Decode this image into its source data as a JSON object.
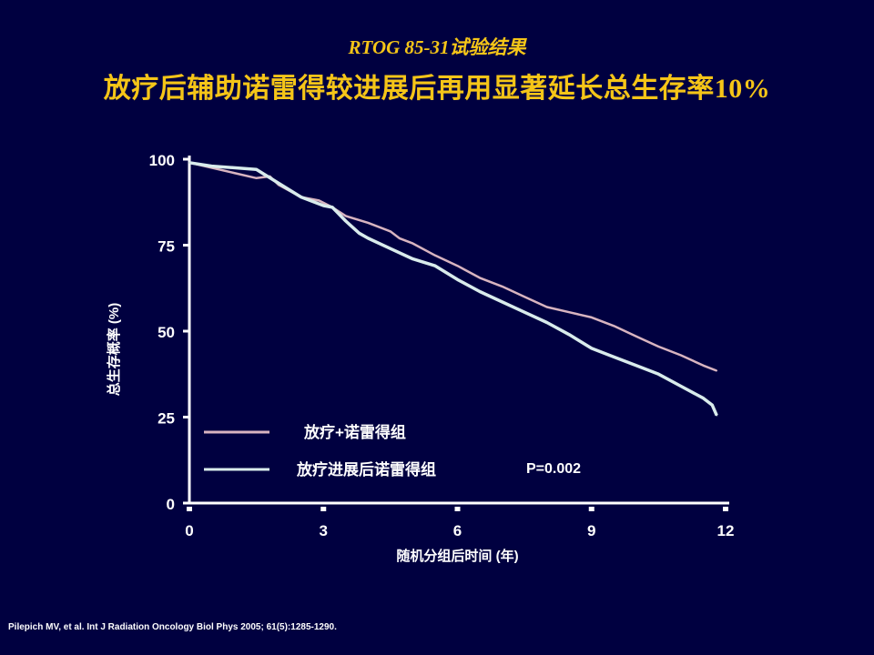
{
  "slide": {
    "subtitle": "RTOG 85-31试验结果",
    "title_main": "放疗后辅助诺雷得较进展后再用显著延长总生存率",
    "title_pct": "10%",
    "citation": "Pilepich MV, et al. Int J Radiation Oncology Biol Phys 2005; 61(5):1285-1290."
  },
  "colors": {
    "background": "#000040",
    "title": "#f5c518",
    "axis": "#ffffff",
    "series_1": "#d8b4c0",
    "series_2": "#d9ecec"
  },
  "chart_data": {
    "type": "line",
    "xlabel": "随机分组后时间 (年)",
    "ylabel": "总生存概率 (%)",
    "xlim": [
      0,
      12
    ],
    "ylim": [
      0,
      100
    ],
    "xticks": [
      0,
      3,
      6,
      9,
      12
    ],
    "yticks": [
      0,
      25,
      50,
      75,
      100
    ],
    "xtick_labels": [
      "0",
      "3",
      "6",
      "9",
      "12"
    ],
    "ytick_labels": [
      "0",
      "25",
      "50",
      "75",
      "100"
    ],
    "grid": false,
    "legend_position": "bottom-left",
    "annotation": "P=0.002",
    "series": [
      {
        "name": "放疗+诺雷得组",
        "x": [
          0,
          0.5,
          1.0,
          1.5,
          1.8,
          2.0,
          2.5,
          2.9,
          3.2,
          3.5,
          4.0,
          4.5,
          4.7,
          5.0,
          5.5,
          6.0,
          6.5,
          7.0,
          7.5,
          8.0,
          8.5,
          9.0,
          9.5,
          10.0,
          10.5,
          11.0,
          11.5,
          11.8
        ],
        "y": [
          99,
          97.5,
          96,
          94.5,
          95,
          92.5,
          89,
          88,
          86,
          83.5,
          81.5,
          79,
          77,
          75.5,
          72,
          69,
          65.5,
          63,
          60,
          57,
          55.5,
          54,
          51.5,
          48.5,
          45.5,
          43,
          40,
          38.5
        ]
      },
      {
        "name": "放疗进展后诺雷得组",
        "x": [
          0,
          0.5,
          1.0,
          1.5,
          2.0,
          2.5,
          3.0,
          3.2,
          3.5,
          3.8,
          4.0,
          4.5,
          5.0,
          5.5,
          6.0,
          6.5,
          7.0,
          7.5,
          8.0,
          8.5,
          9.0,
          9.5,
          10.0,
          10.5,
          11.0,
          11.5,
          11.7,
          11.8
        ],
        "y": [
          99,
          98,
          97.5,
          97,
          93,
          89,
          86.5,
          86,
          82,
          78.5,
          77,
          74,
          71,
          69,
          65,
          61.5,
          58.5,
          55.5,
          52.5,
          49,
          45,
          42.5,
          40,
          37.5,
          34,
          30.5,
          28.5,
          25.5
        ]
      }
    ]
  }
}
